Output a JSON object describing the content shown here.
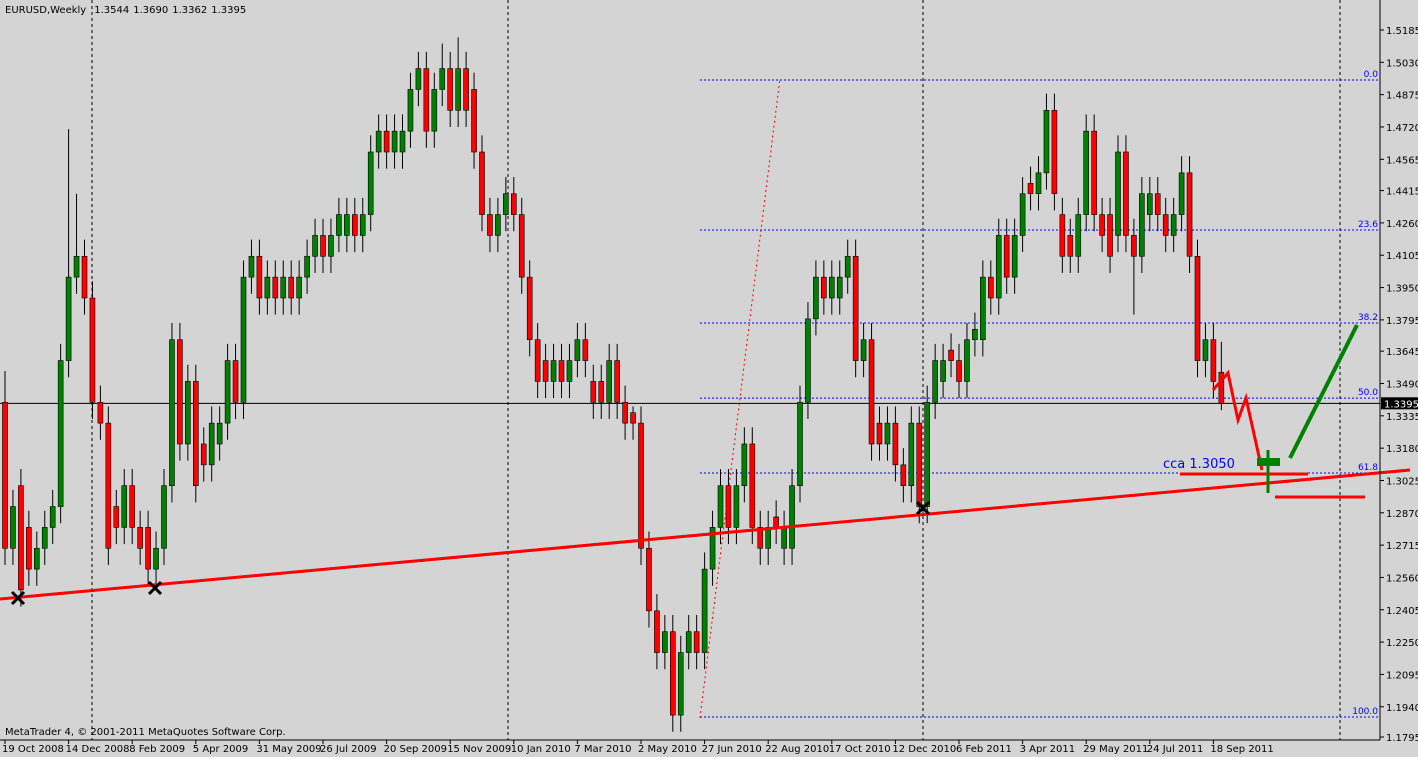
{
  "chart_data": {
    "type": "candlestick",
    "title": "EURUSD,Weekly",
    "header_values": [
      1.3544,
      {
        "value": 1.369,
        "label": "1.3690"
      },
      1.3362,
      1.3395
    ],
    "footer": "MetaTrader 4, © 2001-2011 MetaQuotes Software Corp.",
    "annotation": "cca 1.3050",
    "up_color": "#008000",
    "down_color": "#ff0000",
    "current_price": 1.3395,
    "ylim": [
      1.1795,
      1.5185
    ],
    "yticks": [
      1.5185,
      {
        "value": 1.503,
        "label": "1.5030"
      },
      1.4875,
      {
        "value": 1.472,
        "label": "1.4720"
      },
      1.4565,
      1.4415,
      {
        "value": 1.426,
        "label": "1.4260"
      },
      1.4105,
      {
        "value": 1.395,
        "label": "1.3950"
      },
      1.3795,
      1.3645,
      {
        "value": 1.349,
        "label": "1.3490"
      },
      1.3335,
      {
        "value": 1.318,
        "label": "1.3180"
      },
      1.3025,
      {
        "value": 1.287,
        "label": "1.2870"
      },
      1.2715,
      {
        "value": 1.256,
        "label": "1.2560"
      },
      1.2405,
      {
        "value": 1.225,
        "label": "1.2250"
      },
      1.2095,
      {
        "value": 1.194,
        "label": "1.1940"
      },
      1.1795
    ],
    "fib_levels": [
      {
        "label": "0.0",
        "value": 1.4945
      },
      {
        "label": "23.6",
        "value": 1.4226
      },
      {
        "label": "38.2",
        "value": 1.378
      },
      {
        "label": "50.0",
        "value": 1.342
      },
      {
        "label": "61.8",
        "value": 1.3061
      },
      {
        "label": "100.0",
        "value": 1.1891
      }
    ],
    "categories": [
      "19 Oct 2008",
      null,
      null,
      null,
      null,
      null,
      null,
      null,
      "14 Dec 2008",
      null,
      null,
      null,
      null,
      null,
      null,
      null,
      "8 Feb 2009",
      null,
      null,
      null,
      null,
      null,
      null,
      null,
      "5 Apr 2009",
      null,
      null,
      null,
      null,
      null,
      null,
      null,
      "31 May 2009",
      null,
      null,
      null,
      null,
      null,
      null,
      null,
      "26 Jul 2009",
      null,
      null,
      null,
      null,
      null,
      null,
      null,
      "20 Sep 2009",
      null,
      null,
      null,
      null,
      null,
      null,
      null,
      "15 Nov 2009",
      null,
      null,
      null,
      null,
      null,
      null,
      null,
      "10 Jan 2010",
      null,
      null,
      null,
      null,
      null,
      null,
      null,
      "7 Mar 2010",
      null,
      null,
      null,
      null,
      null,
      null,
      null,
      "2 May 2010",
      null,
      null,
      null,
      null,
      null,
      null,
      null,
      "27 Jun 2010",
      null,
      null,
      null,
      null,
      null,
      null,
      null,
      "22 Aug 2010",
      null,
      null,
      null,
      null,
      null,
      null,
      null,
      "17 Oct 2010",
      null,
      null,
      null,
      null,
      null,
      null,
      null,
      "12 Dec 2010",
      null,
      null,
      null,
      null,
      null,
      null,
      null,
      "6 Feb 2011",
      null,
      null,
      null,
      null,
      null,
      null,
      null,
      "3 Apr 2011",
      null,
      null,
      null,
      null,
      null,
      null,
      null,
      "29 May 2011",
      null,
      null,
      null,
      null,
      null,
      null,
      null,
      "24 Jul 2011",
      null,
      null,
      null,
      null,
      null,
      null,
      null,
      "18 Sep 2011",
      null
    ],
    "open": [
      1.34,
      1.27,
      1.3,
      1.28,
      1.26,
      1.27,
      1.28,
      1.29,
      1.36,
      1.4,
      1.41,
      1.39,
      1.34,
      1.33,
      1.29,
      1.28,
      1.3,
      1.28,
      1.28,
      1.26,
      1.27,
      1.3,
      1.37,
      1.32,
      1.35,
      1.32,
      1.31,
      1.32,
      1.33,
      1.36,
      1.34,
      1.4,
      1.41,
      1.39,
      1.4,
      1.39,
      1.4,
      1.39,
      1.4,
      1.41,
      1.42,
      1.41,
      1.42,
      1.42,
      1.43,
      1.42,
      1.43,
      1.46,
      1.47,
      1.46,
      1.46,
      1.47,
      1.49,
      1.5,
      1.47,
      1.49,
      1.5,
      1.48,
      1.5,
      1.49,
      1.46,
      1.43,
      1.42,
      1.43,
      1.44,
      1.43,
      1.4,
      1.37,
      1.36,
      1.35,
      1.36,
      1.35,
      1.36,
      1.37,
      1.35,
      1.35,
      1.34,
      1.36,
      1.34,
      1.335,
      1.33,
      1.27,
      1.24,
      1.22,
      1.23,
      1.19,
      1.22,
      1.23,
      1.22,
      1.26,
      1.28,
      1.3,
      1.28,
      1.3,
      1.32,
      1.28,
      1.27,
      1.285,
      1.27,
      1.27,
      1.3,
      1.34,
      1.38,
      1.4,
      1.39,
      1.39,
      1.4,
      1.41,
      1.36,
      1.37,
      1.33,
      1.32,
      1.33,
      1.31,
      1.3,
      1.33,
      1.29,
      1.34,
      1.35,
      1.365,
      1.36,
      1.35,
      1.37,
      1.37,
      1.4,
      1.39,
      1.42,
      1.4,
      1.42,
      1.445,
      1.44,
      1.45,
      1.48,
      1.43,
      1.42,
      1.41,
      1.43,
      1.47,
      1.43,
      1.43,
      1.42,
      1.46,
      1.42,
      1.41,
      1.43,
      1.44,
      1.43,
      1.42,
      1.43,
      1.45,
      1.41,
      1.36,
      1.37,
      1.3544
    ],
    "high": [
      1.355,
      1.298,
      1.308,
      1.288,
      1.278,
      1.288,
      1.298,
      1.368,
      1.471,
      1.44,
      1.418,
      1.398,
      1.348,
      1.338,
      1.298,
      1.308,
      1.308,
      1.288,
      1.288,
      1.278,
      1.308,
      1.378,
      1.378,
      1.358,
      1.358,
      1.328,
      1.338,
      1.338,
      1.368,
      1.368,
      1.408,
      1.418,
      1.418,
      1.408,
      1.408,
      1.408,
      1.408,
      1.408,
      1.418,
      1.428,
      1.428,
      1.428,
      1.438,
      1.438,
      1.438,
      1.438,
      1.468,
      1.478,
      1.478,
      1.478,
      1.478,
      1.498,
      1.508,
      1.508,
      1.498,
      1.512,
      1.508,
      1.515,
      1.508,
      1.498,
      1.468,
      1.438,
      1.438,
      1.448,
      1.448,
      1.438,
      1.408,
      1.378,
      1.368,
      1.368,
      1.368,
      1.368,
      1.378,
      1.378,
      1.358,
      1.358,
      1.368,
      1.368,
      1.348,
      1.338,
      1.338,
      1.278,
      1.248,
      1.238,
      1.238,
      1.228,
      1.238,
      1.238,
      1.268,
      1.288,
      1.308,
      1.308,
      1.308,
      1.328,
      1.328,
      1.288,
      1.288,
      1.293,
      1.288,
      1.308,
      1.348,
      1.388,
      1.408,
      1.408,
      1.408,
      1.408,
      1.418,
      1.418,
      1.378,
      1.378,
      1.338,
      1.338,
      1.338,
      1.318,
      1.338,
      1.338,
      1.348,
      1.368,
      1.368,
      1.373,
      1.368,
      1.378,
      1.383,
      1.408,
      1.408,
      1.428,
      1.428,
      1.428,
      1.448,
      1.453,
      1.458,
      1.488,
      1.488,
      1.438,
      1.428,
      1.438,
      1.478,
      1.478,
      1.438,
      1.438,
      1.468,
      1.468,
      1.428,
      1.448,
      1.448,
      1.448,
      1.438,
      1.438,
      1.458,
      1.458,
      1.418,
      1.378,
      1.378,
      1.369
    ],
    "low": [
      1.262,
      1.262,
      1.242,
      1.252,
      1.252,
      1.262,
      1.272,
      1.282,
      1.352,
      1.392,
      1.382,
      1.332,
      1.322,
      1.262,
      1.272,
      1.272,
      1.272,
      1.262,
      1.252,
      1.252,
      1.262,
      1.292,
      1.312,
      1.312,
      1.292,
      1.302,
      1.302,
      1.312,
      1.322,
      1.332,
      1.332,
      1.392,
      1.382,
      1.382,
      1.382,
      1.382,
      1.382,
      1.382,
      1.392,
      1.402,
      1.402,
      1.402,
      1.412,
      1.412,
      1.412,
      1.412,
      1.422,
      1.452,
      1.452,
      1.452,
      1.452,
      1.462,
      1.482,
      1.462,
      1.462,
      1.482,
      1.472,
      1.472,
      1.472,
      1.452,
      1.422,
      1.412,
      1.412,
      1.422,
      1.422,
      1.392,
      1.362,
      1.342,
      1.342,
      1.342,
      1.342,
      1.342,
      1.352,
      1.352,
      1.332,
      1.332,
      1.332,
      1.332,
      1.322,
      1.322,
      1.262,
      1.232,
      1.212,
      1.212,
      1.182,
      1.182,
      1.212,
      1.212,
      1.212,
      1.252,
      1.272,
      1.272,
      1.272,
      1.292,
      1.272,
      1.262,
      1.262,
      1.272,
      1.262,
      1.262,
      1.292,
      1.332,
      1.372,
      1.382,
      1.382,
      1.382,
      1.392,
      1.352,
      1.352,
      1.312,
      1.312,
      1.312,
      1.302,
      1.292,
      1.292,
      1.282,
      1.282,
      1.332,
      1.342,
      1.352,
      1.342,
      1.342,
      1.362,
      1.362,
      1.382,
      1.382,
      1.392,
      1.392,
      1.412,
      1.432,
      1.432,
      1.442,
      1.432,
      1.402,
      1.402,
      1.402,
      1.422,
      1.422,
      1.412,
      1.402,
      1.412,
      1.412,
      1.382,
      1.402,
      1.422,
      1.422,
      1.412,
      1.412,
      1.422,
      1.402,
      1.352,
      1.352,
      1.342,
      1.3362
    ],
    "close": [
      1.27,
      1.29,
      1.25,
      1.26,
      1.27,
      1.28,
      1.29,
      1.36,
      1.4,
      1.41,
      1.39,
      1.34,
      1.33,
      1.27,
      1.28,
      1.3,
      1.28,
      1.27,
      1.26,
      1.27,
      1.3,
      1.37,
      1.32,
      1.35,
      1.3,
      1.31,
      1.33,
      1.33,
      1.36,
      1.34,
      1.4,
      1.41,
      1.39,
      1.4,
      1.39,
      1.4,
      1.39,
      1.4,
      1.41,
      1.42,
      1.41,
      1.42,
      1.43,
      1.43,
      1.42,
      1.43,
      1.46,
      1.47,
      1.46,
      1.47,
      1.47,
      1.49,
      1.5,
      1.47,
      1.49,
      1.5,
      1.48,
      1.5,
      1.48,
      1.46,
      1.43,
      1.42,
      1.43,
      1.44,
      1.43,
      1.4,
      1.37,
      1.35,
      1.35,
      1.36,
      1.35,
      1.36,
      1.37,
      1.36,
      1.34,
      1.34,
      1.36,
      1.34,
      1.33,
      1.33,
      1.27,
      1.24,
      1.22,
      1.23,
      1.19,
      1.22,
      1.23,
      1.22,
      1.26,
      1.28,
      1.3,
      1.28,
      1.3,
      1.32,
      1.28,
      1.27,
      1.28,
      1.28,
      1.28,
      1.3,
      1.34,
      1.38,
      1.4,
      1.39,
      1.4,
      1.4,
      1.41,
      1.36,
      1.37,
      1.32,
      1.32,
      1.33,
      1.31,
      1.3,
      1.33,
      1.29,
      1.34,
      1.36,
      1.36,
      1.36,
      1.35,
      1.37,
      1.375,
      1.4,
      1.39,
      1.42,
      1.4,
      1.42,
      1.44,
      1.44,
      1.45,
      1.48,
      1.44,
      1.41,
      1.41,
      1.43,
      1.47,
      1.43,
      1.42,
      1.41,
      1.46,
      1.42,
      1.41,
      1.44,
      1.44,
      1.43,
      1.42,
      1.43,
      1.45,
      1.41,
      1.36,
      1.37,
      1.35,
      1.3395
    ]
  }
}
